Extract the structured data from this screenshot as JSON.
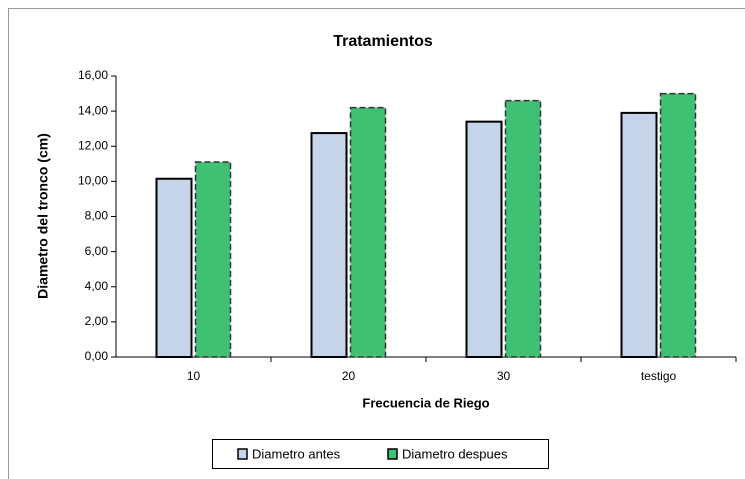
{
  "chart_data": {
    "type": "bar",
    "title": "Tratamientos",
    "x_label": "Frecuencia de Riego",
    "y_label": "Diametro del tronco  (cm)",
    "categories": [
      "10",
      "20",
      "30",
      "testigo"
    ],
    "series": [
      {
        "name": "Diametro antes",
        "color": "#c6d4ea",
        "values": [
          10.15,
          12.75,
          13.4,
          13.9
        ]
      },
      {
        "name": "Diametro despues",
        "color": "#40c072",
        "values": [
          11.1,
          14.2,
          14.6,
          15.0
        ]
      }
    ],
    "ylim": [
      0,
      16
    ],
    "yticks": [
      {
        "value": 0,
        "label": "0,00"
      },
      {
        "value": 2,
        "label": "2,00"
      },
      {
        "value": 4,
        "label": "4,00"
      },
      {
        "value": 6,
        "label": "6,00"
      },
      {
        "value": 8,
        "label": "8,00"
      },
      {
        "value": 10,
        "label": "10,00"
      },
      {
        "value": 12,
        "label": "12,00"
      },
      {
        "value": 14,
        "label": "14,00"
      },
      {
        "value": 16,
        "label": "16,00"
      }
    ],
    "legend": "bottom"
  }
}
